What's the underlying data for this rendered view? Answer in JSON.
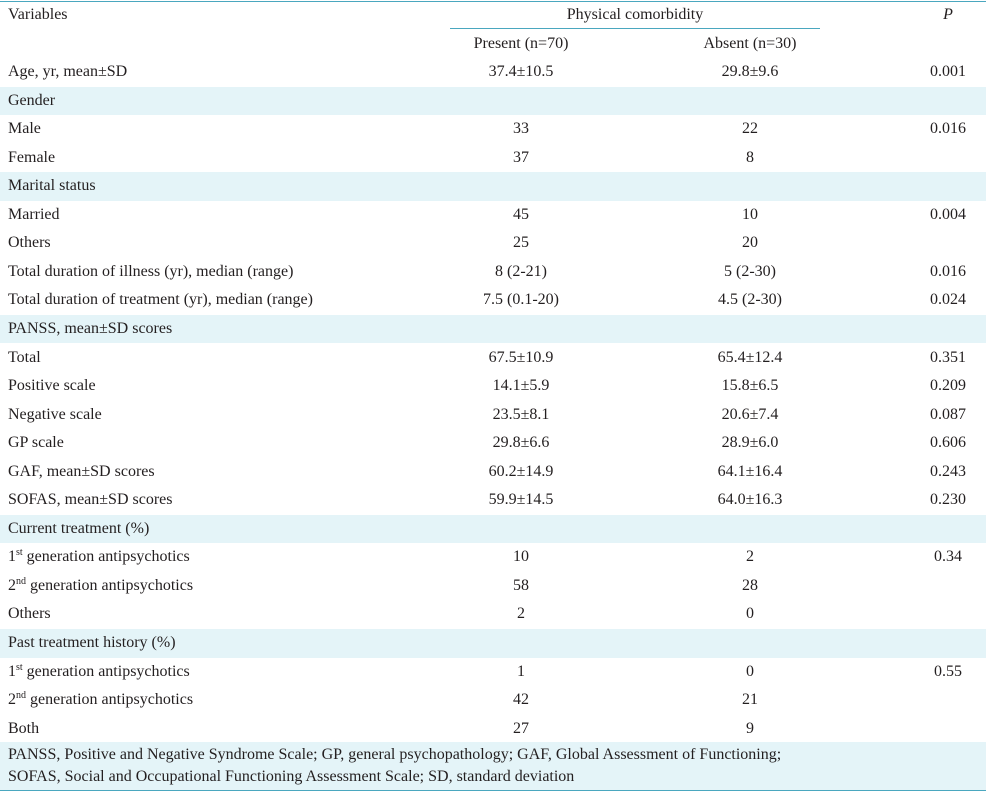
{
  "header": {
    "variables": "Variables",
    "group": "Physical comorbidity",
    "p": "P",
    "present": "Present (n=70)",
    "absent": "Absent (n=30)"
  },
  "rows": [
    {
      "label": "Age, yr, mean±SD",
      "present": "37.4±10.5",
      "absent": "29.8±9.6",
      "p": "0.001",
      "shaded": false
    },
    {
      "label": "Gender",
      "present": "",
      "absent": "",
      "p": "",
      "shaded": true
    },
    {
      "label": "Male",
      "present": "33",
      "absent": "22",
      "p": "0.016",
      "shaded": false
    },
    {
      "label": "Female",
      "present": "37",
      "absent": "8",
      "p": "",
      "shaded": false
    },
    {
      "label": "Marital status",
      "present": "",
      "absent": "",
      "p": "",
      "shaded": true
    },
    {
      "label": "Married",
      "present": "45",
      "absent": "10",
      "p": "0.004",
      "shaded": false
    },
    {
      "label": "Others",
      "present": "25",
      "absent": "20",
      "p": "",
      "shaded": false
    },
    {
      "label": "Total duration of illness (yr), median (range)",
      "present": "8 (2-21)",
      "absent": "5 (2-30)",
      "p": "0.016",
      "shaded": false
    },
    {
      "label": "Total duration of treatment (yr), median (range)",
      "present": "7.5 (0.1-20)",
      "absent": "4.5 (2-30)",
      "p": "0.024",
      "shaded": false
    },
    {
      "label": "PANSS, mean±SD scores",
      "present": "",
      "absent": "",
      "p": "",
      "shaded": true
    },
    {
      "label": "Total",
      "present": "67.5±10.9",
      "absent": "65.4±12.4",
      "p": "0.351",
      "shaded": false
    },
    {
      "label": "Positive scale",
      "present": "14.1±5.9",
      "absent": "15.8±6.5",
      "p": "0.209",
      "shaded": false
    },
    {
      "label": "Negative scale",
      "present": "23.5±8.1",
      "absent": "20.6±7.4",
      "p": "0.087",
      "shaded": false
    },
    {
      "label": "GP scale",
      "present": "29.8±6.6",
      "absent": "28.9±6.0",
      "p": "0.606",
      "shaded": false
    },
    {
      "label": "GAF, mean±SD scores",
      "present": "60.2±14.9",
      "absent": "64.1±16.4",
      "p": "0.243",
      "shaded": false
    },
    {
      "label": "SOFAS, mean±SD scores",
      "present": "59.9±14.5",
      "absent": "64.0±16.3",
      "p": "0.230",
      "shaded": false
    },
    {
      "label": "Current treatment (%)",
      "present": "",
      "absent": "",
      "p": "",
      "shaded": true
    },
    {
      "label_pre": "1",
      "label_sup": "st",
      "label_post": " generation antipsychotics",
      "present": "10",
      "absent": "2",
      "p": "0.34",
      "shaded": false
    },
    {
      "label_pre": "2",
      "label_sup": "nd",
      "label_post": " generation antipsychotics",
      "present": "58",
      "absent": "28",
      "p": "",
      "shaded": false
    },
    {
      "label": "Others",
      "present": "2",
      "absent": "0",
      "p": "",
      "shaded": false
    },
    {
      "label": "Past treatment history (%)",
      "present": "",
      "absent": "",
      "p": "",
      "shaded": true
    },
    {
      "label_pre": "1",
      "label_sup": "st",
      "label_post": " generation antipsychotics",
      "present": "1",
      "absent": "0",
      "p": "0.55",
      "shaded": false
    },
    {
      "label_pre": "2",
      "label_sup": "nd",
      "label_post": " generation antipsychotics",
      "present": "42",
      "absent": "21",
      "p": "",
      "shaded": false
    },
    {
      "label": "Both",
      "present": "27",
      "absent": "9",
      "p": "",
      "shaded": false
    }
  ],
  "footnote": {
    "line1": "PANSS, Positive and Negative Syndrome Scale; GP, general psychopathology; GAF, Global Assessment of Functioning;",
    "line2": "SOFAS, Social and Occupational Functioning Assessment Scale; SD, standard deviation"
  },
  "colors": {
    "shade": "#e4f4f8",
    "rule": "#4aa7bf",
    "text": "#231f20"
  }
}
